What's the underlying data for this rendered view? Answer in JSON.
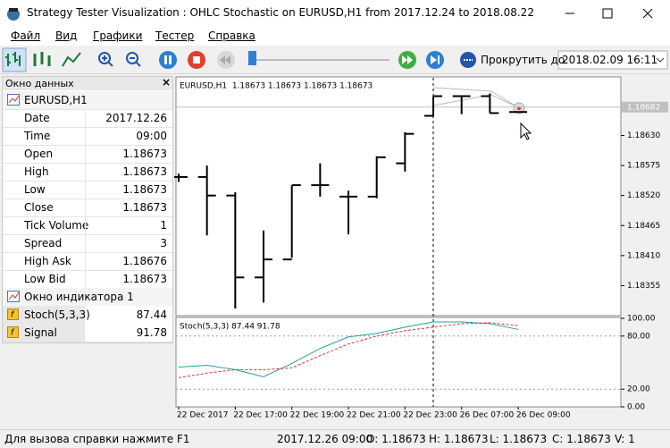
{
  "window": {
    "title": "Strategy Tester Visualization : OHLC Stochastic on EURUSD,H1 from 2017.12.24 to 2018.08.22"
  },
  "menu": [
    "Файл",
    "Вид",
    "Графики",
    "Тестер",
    "Справка"
  ],
  "toolbar": {
    "scroll_button": "Прокрутить до",
    "scroll_date": "2018.02.09 16:11"
  },
  "data_window": {
    "title": "Окно данных",
    "symbol": "EURUSD,H1",
    "rows": [
      [
        "Date",
        "2017.12.26"
      ],
      [
        "Time",
        "09:00"
      ],
      [
        "Open",
        "1.18673"
      ],
      [
        "High",
        "1.18673"
      ],
      [
        "Low",
        "1.18673"
      ],
      [
        "Close",
        "1.18673"
      ],
      [
        "Tick Volume",
        "1"
      ],
      [
        "Spread",
        "3"
      ],
      [
        "High Ask",
        "1.18676"
      ],
      [
        "Low Bid",
        "1.18673"
      ]
    ],
    "indicator_title": "Окно индикатора 1",
    "indicator_rows": [
      [
        "Stoch(5,3,3)",
        "87.44"
      ],
      [
        "Signal",
        "91.78"
      ]
    ]
  },
  "chart": {
    "header": "EURUSD,H1  1.18673 1.18673 1.18673 1.18673",
    "categories": [
      "22 Dec 2017",
      null,
      "22 Dec 17:00",
      null,
      "22 Dec 19:00",
      null,
      "22 Dec 21:00",
      null,
      "22 Dec 23:00",
      null,
      "26 Dec 07:00",
      null,
      "26 Dec 09:00"
    ],
    "ylim": [
      1.183,
      1.18734
    ],
    "yticks": [
      {
        "value": 1.1863,
        "label": "1.18630"
      },
      {
        "value": 1.18575,
        "label": "1.18575"
      },
      {
        "value": 1.1852,
        "label": "1.18520"
      },
      {
        "value": 1.18465,
        "label": "1.18465"
      },
      {
        "value": 1.1841,
        "label": "1.18410"
      },
      {
        "value": 1.18355,
        "label": "1.18355"
      }
    ],
    "current_price": 1.18682,
    "color": "#000000",
    "open": [
      1.18554,
      1.18554,
      1.1852,
      1.1837,
      1.18403,
      1.18539,
      1.18518,
      1.18518,
      1.18579,
      1.18666,
      1.18702,
      1.18702,
      1.18673
    ],
    "high": [
      1.1856,
      1.18575,
      1.18526,
      1.18456,
      1.18539,
      1.18579,
      1.18529,
      1.18592,
      1.18636,
      1.18702,
      1.18703,
      1.18707,
      1.18673
    ],
    "low": [
      1.18545,
      1.18447,
      1.18313,
      1.18324,
      1.18406,
      1.18518,
      1.18449,
      1.18515,
      1.18564,
      1.18666,
      1.18669,
      1.18671,
      1.18673
    ],
    "close": [
      1.18554,
      1.1852,
      1.1837,
      1.18403,
      1.18539,
      1.18539,
      1.18518,
      1.1859,
      1.18633,
      1.18702,
      1.18702,
      1.18671,
      1.18673
    ],
    "stoch": {
      "header": "Stoch(5,3,3) 87.44 91.78",
      "ylim": [
        0,
        100
      ],
      "yticks": [
        {
          "value": 100,
          "label": "100.00"
        },
        {
          "value": 80,
          "label": "80.00"
        },
        {
          "value": 20,
          "label": "20.00"
        },
        {
          "value": 0,
          "label": "0.00"
        }
      ],
      "levels": [
        80,
        20
      ],
      "series": [
        {
          "color": "#20a0a0",
          "values": [
            45,
            47,
            42,
            34,
            49,
            66,
            79,
            83,
            90,
            96,
            96,
            94,
            87.44
          ]
        },
        {
          "color": "#e03030",
          "values": [
            33,
            38,
            42,
            42,
            44,
            58,
            71,
            80,
            86,
            90,
            94,
            95,
            91.78
          ]
        }
      ]
    }
  },
  "status": {
    "help": "Для вызова справки нажмите F1",
    "time": "2017.12.26 09:00",
    "open": "O: 1.18673",
    "high": "H: 1.18673",
    "low": "L: 1.18673",
    "close": "C: 1.18673",
    "volume": "V: 1"
  }
}
